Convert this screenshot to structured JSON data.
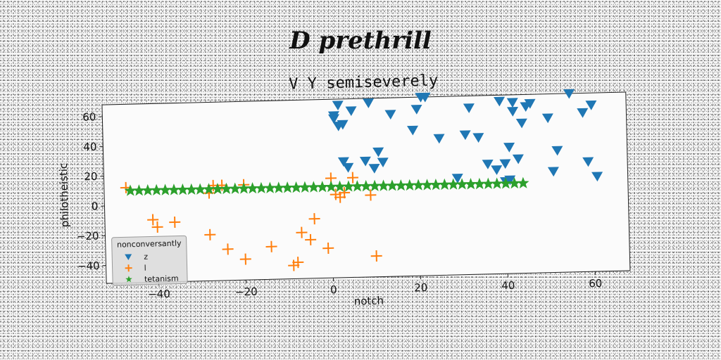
{
  "figure": {
    "title": "D prethrill"
  },
  "chart_data": {
    "type": "scatter",
    "title": "V Y semiseverely",
    "xlabel": "notch",
    "ylabel": "philotheistic",
    "xlim": [
      -52,
      68
    ],
    "ylim": [
      -52,
      68
    ],
    "xticks": [
      -40,
      -20,
      0,
      20,
      40,
      60
    ],
    "yticks": [
      -40,
      -20,
      0,
      20,
      40,
      60
    ],
    "grid": false,
    "legend": {
      "title": "nonconversantly",
      "placement": "lower-left"
    },
    "series": [
      {
        "name": "z",
        "marker": "triangle-down",
        "color": "#1f77b4",
        "x": [
          1,
          2,
          3,
          4,
          5,
          8,
          9,
          10,
          11,
          12,
          14,
          19,
          20,
          21,
          22,
          25,
          29,
          31,
          32,
          34,
          36,
          38,
          39,
          40,
          41,
          42,
          43,
          44,
          45,
          46,
          50,
          51,
          52,
          55,
          58,
          60
        ],
        "y": [
          55,
          64,
          51,
          22,
          60,
          26,
          65,
          21,
          32,
          25,
          57,
          46,
          60,
          68,
          68,
          40,
          13,
          42,
          60,
          40,
          22,
          18,
          64,
          22,
          33,
          57,
          25,
          49,
          60,
          62,
          52,
          16,
          30,
          68,
          55,
          60
        ],
        "extra": [
          [
            1,
            57
          ],
          [
            2,
            50
          ],
          [
            3,
            26
          ],
          [
            40,
            10
          ],
          [
            41,
            11
          ],
          [
            42,
            63
          ],
          [
            61,
            12
          ],
          [
            59,
            22
          ]
        ]
      },
      {
        "name": "l",
        "marker": "plus",
        "color": "#ff7f0e",
        "x": [
          -47,
          -41,
          -40,
          -36,
          -28,
          -28,
          -27,
          -25,
          -24,
          -20,
          -20,
          -14,
          -9,
          -8,
          -7,
          -5,
          -4,
          0,
          1,
          2,
          5,
          9,
          10
        ],
        "y": [
          12,
          -10,
          -15,
          -12,
          -21,
          7,
          12,
          12,
          -31,
          12,
          -38,
          -30,
          -43,
          -41,
          -21,
          -26,
          -12,
          15,
          4,
          2,
          15,
          3,
          -38
        ],
        "extra": [
          [
            -1,
            -32
          ],
          [
            3,
            5
          ]
        ]
      },
      {
        "name": "tetanism",
        "marker": "star",
        "color": "#2ca02c",
        "x": [
          -46,
          -44,
          -42,
          -40,
          -38,
          -36,
          -34,
          -32,
          -30,
          -28,
          -26,
          -24,
          -22,
          -20,
          -18,
          -16,
          -14,
          -12,
          -10,
          -8,
          -6,
          -4,
          -2,
          0,
          2,
          4,
          6,
          8,
          10,
          12,
          14,
          16,
          18,
          20,
          22,
          24,
          26,
          28,
          30,
          32,
          34,
          36,
          38,
          40,
          42,
          44
        ],
        "y": [
          9.8,
          9.77,
          9.74,
          9.71,
          9.68,
          9.65,
          9.62,
          9.59,
          9.56,
          9.53,
          9.5,
          9.47,
          9.44,
          9.41,
          9.38,
          9.35,
          9.32,
          9.29,
          9.26,
          9.23,
          9.2,
          9.17,
          9.14,
          9.11,
          9.08,
          9.05,
          9.02,
          8.99,
          8.96,
          8.93,
          8.9,
          8.87,
          8.84,
          8.81,
          8.78,
          8.75,
          8.72,
          8.69,
          8.66,
          8.63,
          8.6,
          8.57,
          8.54,
          8.51,
          8.48,
          8.45
        ]
      }
    ]
  }
}
